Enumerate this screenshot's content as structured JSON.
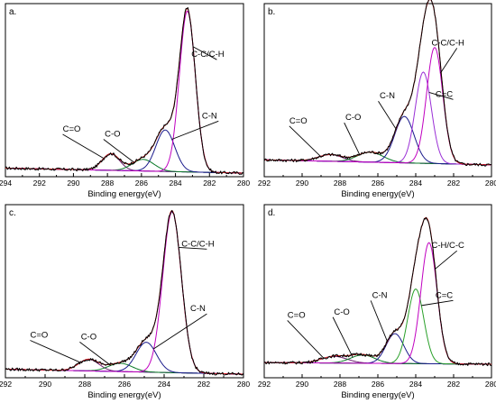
{
  "chart_data": [
    {
      "type": "line",
      "panel_label": "a.",
      "xlabel": "Binding energy(eV)",
      "ylabel": "",
      "xlim": [
        294,
        280
      ],
      "xticks": [
        294,
        292,
        290,
        288,
        286,
        284,
        282,
        280
      ],
      "ylim": [
        0,
        1
      ],
      "grid": false,
      "baseline": {
        "at_high": 0.03,
        "at_low": 0.0
      },
      "peaks": [
        {
          "label": "C=O",
          "center": 287.8,
          "height": 0.1,
          "fwhm": 1.2,
          "color": "#6b1c6e",
          "anno_text_x": 290.1,
          "anno_text_y": 0.25
        },
        {
          "label": "C-O",
          "center": 285.9,
          "height": 0.07,
          "fwhm": 1.5,
          "color": "#0a7a28",
          "anno_text_x": 287.7,
          "anno_text_y": 0.22
        },
        {
          "label": "C-N",
          "center": 284.6,
          "height": 0.25,
          "fwhm": 1.3,
          "color": "#1a1a8c",
          "anno_text_x": 282.0,
          "anno_text_y": 0.33
        },
        {
          "label": "C-C/C-H",
          "center": 283.3,
          "height": 0.97,
          "fwhm": 1.1,
          "color": "#c000c0",
          "anno_text_x": 282.1,
          "anno_text_y": 0.7
        }
      ],
      "envelope_color": "#d42020",
      "raw_color": "#000000"
    },
    {
      "type": "line",
      "panel_label": "b.",
      "xlabel": "Binding energy(eV)",
      "ylabel": "",
      "xlim": [
        292,
        280
      ],
      "xticks": [
        292,
        290,
        288,
        286,
        284,
        282,
        280
      ],
      "ylim": [
        0,
        1
      ],
      "grid": false,
      "baseline": {
        "at_high": 0.08,
        "at_low": 0.05
      },
      "peaks": [
        {
          "label": "C=O",
          "center": 288.5,
          "height": 0.04,
          "fwhm": 1.5,
          "color": "#6b1c6e",
          "anno_text_x": 290.2,
          "anno_text_y": 0.3
        },
        {
          "label": "C-O",
          "center": 286.4,
          "height": 0.06,
          "fwhm": 1.6,
          "color": "#0a7a28",
          "anno_text_x": 287.3,
          "anno_text_y": 0.32
        },
        {
          "label": "C-N",
          "center": 284.6,
          "height": 0.28,
          "fwhm": 1.2,
          "color": "#1a1a8c",
          "anno_text_x": 285.5,
          "anno_text_y": 0.45
        },
        {
          "label": "C=C",
          "center": 283.6,
          "height": 0.55,
          "fwhm": 1.0,
          "color": "#9a2fd6",
          "anno_text_x": 282.5,
          "anno_text_y": 0.46
        },
        {
          "label": "C-C/C-H",
          "center": 283.0,
          "height": 0.7,
          "fwhm": 1.0,
          "color": "#c000c0",
          "anno_text_x": 282.3,
          "anno_text_y": 0.77
        }
      ],
      "envelope_color": "#d42020",
      "raw_color": "#000000"
    },
    {
      "type": "line",
      "panel_label": "c.",
      "xlabel": "Binding energy(eV)",
      "ylabel": "",
      "xlim": [
        292,
        280
      ],
      "xticks": [
        292,
        290,
        288,
        286,
        284,
        282,
        280
      ],
      "ylim": [
        0,
        1
      ],
      "grid": false,
      "baseline": {
        "at_high": 0.03,
        "at_low": 0.0
      },
      "peaks": [
        {
          "label": "C=O",
          "center": 287.8,
          "height": 0.07,
          "fwhm": 1.2,
          "color": "#6b1c6e",
          "anno_text_x": 290.3,
          "anno_text_y": 0.22
        },
        {
          "label": "C-O",
          "center": 286.2,
          "height": 0.05,
          "fwhm": 1.4,
          "color": "#0a7a28",
          "anno_text_x": 287.8,
          "anno_text_y": 0.21
        },
        {
          "label": "C-N",
          "center": 284.9,
          "height": 0.18,
          "fwhm": 1.2,
          "color": "#1a1a8c",
          "anno_text_x": 282.3,
          "anno_text_y": 0.38
        },
        {
          "label": "C-C/C-H",
          "center": 283.6,
          "height": 0.97,
          "fwhm": 1.1,
          "color": "#c000c0",
          "anno_text_x": 282.3,
          "anno_text_y": 0.77
        }
      ],
      "envelope_color": "#d42020",
      "raw_color": "#000000"
    },
    {
      "type": "line",
      "panel_label": "d.",
      "xlabel": "Binding energy(eV)",
      "ylabel": "",
      "xlim": [
        292,
        280
      ],
      "xticks": [
        292,
        290,
        288,
        286,
        284,
        282,
        280
      ],
      "ylim": [
        0,
        1
      ],
      "grid": false,
      "baseline": {
        "at_high": 0.07,
        "at_low": 0.06
      },
      "peaks": [
        {
          "label": "C=O",
          "center": 288.3,
          "height": 0.04,
          "fwhm": 1.6,
          "color": "#6b1c6e",
          "anno_text_x": 290.3,
          "anno_text_y": 0.34
        },
        {
          "label": "C-O",
          "center": 286.8,
          "height": 0.05,
          "fwhm": 1.5,
          "color": "#0a7a28",
          "anno_text_x": 287.9,
          "anno_text_y": 0.36
        },
        {
          "label": "C-N",
          "center": 285.1,
          "height": 0.18,
          "fwhm": 1.1,
          "color": "#1a1a8c",
          "anno_text_x": 285.9,
          "anno_text_y": 0.46
        },
        {
          "label": "C=C",
          "center": 284.0,
          "height": 0.45,
          "fwhm": 1.0,
          "color": "#2aa02a",
          "anno_text_x": 282.5,
          "anno_text_y": 0.46
        },
        {
          "label": "C-H/C-C",
          "center": 283.3,
          "height": 0.73,
          "fwhm": 1.0,
          "color": "#c000c0",
          "anno_text_x": 282.3,
          "anno_text_y": 0.76
        }
      ],
      "envelope_color": "#d42020",
      "raw_color": "#000000"
    }
  ]
}
